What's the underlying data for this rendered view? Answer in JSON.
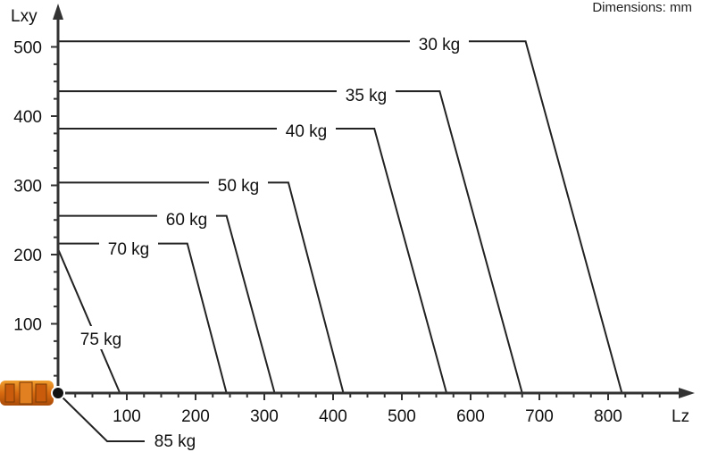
{
  "note": "Dimensions: mm",
  "chart_data": {
    "type": "line",
    "xlabel": "Lz",
    "ylabel": "Lxy",
    "xlim": [
      0,
      900
    ],
    "ylim": [
      0,
      520
    ],
    "x_ticks": [
      100,
      200,
      300,
      400,
      500,
      600,
      700,
      800
    ],
    "y_ticks": [
      100,
      200,
      300,
      400,
      500
    ],
    "series": [
      {
        "name": "30 kg",
        "x": [
          0,
          680,
          820
        ],
        "y": [
          508,
          508,
          0
        ]
      },
      {
        "name": "35 kg",
        "x": [
          0,
          555,
          675
        ],
        "y": [
          436,
          436,
          0
        ]
      },
      {
        "name": "40 kg",
        "x": [
          0,
          460,
          565
        ],
        "y": [
          382,
          382,
          0
        ]
      },
      {
        "name": "50 kg",
        "x": [
          0,
          335,
          415
        ],
        "y": [
          304,
          304,
          0
        ]
      },
      {
        "name": "60 kg",
        "x": [
          0,
          245,
          315
        ],
        "y": [
          256,
          256,
          0
        ]
      },
      {
        "name": "70 kg",
        "x": [
          0,
          188,
          245
        ],
        "y": [
          216,
          216,
          0
        ]
      },
      {
        "name": "75 kg",
        "x": [
          0,
          90
        ],
        "y": [
          208,
          0
        ]
      },
      {
        "name": "85 kg",
        "x": [
          0
        ],
        "y": [
          0
        ]
      }
    ]
  }
}
